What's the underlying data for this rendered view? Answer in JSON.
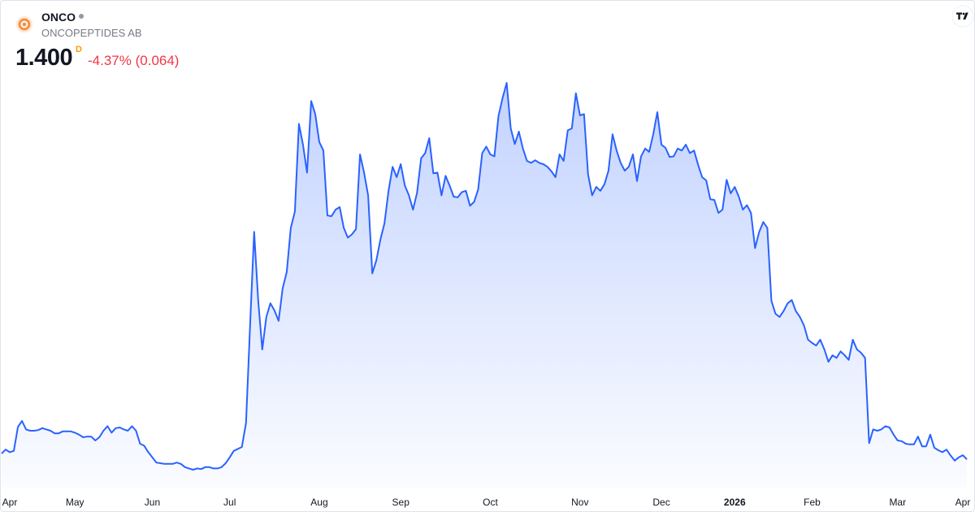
{
  "header": {
    "symbol": "ONCO",
    "name": "ONCOPEPTIDES AB",
    "price": "1.400",
    "price_flag": "D",
    "change_percent": "-4.37%",
    "change": "(0.064)"
  },
  "chart_data": {
    "type": "area",
    "color": "#2962ff",
    "categories": [
      null,
      null,
      "Apr",
      null,
      null,
      null,
      null,
      null,
      null,
      null,
      null,
      null,
      null,
      null,
      null,
      null,
      null,
      null,
      "May",
      null,
      null,
      null,
      null,
      null,
      null,
      null,
      null,
      null,
      null,
      null,
      null,
      null,
      null,
      null,
      null,
      null,
      null,
      "Jun",
      null,
      null,
      null,
      null,
      null,
      null,
      null,
      null,
      null,
      null,
      null,
      null,
      null,
      null,
      null,
      null,
      null,
      null,
      "Jul",
      null,
      null,
      null,
      null,
      null,
      null,
      null,
      null,
      null,
      null,
      null,
      null,
      null,
      null,
      null,
      null,
      null,
      null,
      null,
      null,
      null,
      "Aug",
      null,
      null,
      null,
      null,
      null,
      null,
      null,
      null,
      null,
      null,
      null,
      null,
      null,
      null,
      null,
      null,
      null,
      null,
      null,
      "Sep",
      null,
      null,
      null,
      null,
      null,
      null,
      null,
      null,
      null,
      null,
      null,
      null,
      null,
      null,
      null,
      null,
      null,
      null,
      null,
      null,
      null,
      "Oct",
      null,
      null,
      null,
      null,
      null,
      null,
      null,
      null,
      null,
      null,
      null,
      null,
      null,
      null,
      null,
      null,
      null,
      null,
      null,
      null,
      null,
      "Nov",
      null,
      null,
      null,
      null,
      null,
      null,
      null,
      null,
      null,
      null,
      null,
      null,
      null,
      null,
      null,
      null,
      null,
      null,
      null,
      "Dec",
      null,
      null,
      null,
      null,
      null,
      null,
      null,
      null,
      null,
      null,
      null,
      null,
      null,
      null,
      null,
      null,
      null,
      "2026",
      null,
      null,
      null,
      null,
      null,
      null,
      null,
      null,
      null,
      null,
      null,
      null,
      null,
      null,
      null,
      null,
      null,
      null,
      "Feb",
      null,
      null,
      null,
      null,
      null,
      null,
      null,
      null,
      null,
      null,
      null,
      null,
      null,
      null,
      null,
      null,
      null,
      null,
      null,
      null,
      "Mar",
      null,
      null,
      null,
      null,
      null,
      null,
      null,
      null,
      null,
      null,
      null,
      null,
      null,
      null,
      null,
      "Apr",
      null
    ],
    "values": [
      1.49,
      1.55,
      1.51,
      1.53,
      1.9,
      1.99,
      1.86,
      1.84,
      1.84,
      1.85,
      1.88,
      1.86,
      1.84,
      1.8,
      1.8,
      1.83,
      1.83,
      1.83,
      1.81,
      1.78,
      1.74,
      1.75,
      1.75,
      1.69,
      1.74,
      1.84,
      1.91,
      1.81,
      1.88,
      1.89,
      1.86,
      1.84,
      1.91,
      1.84,
      1.64,
      1.61,
      1.51,
      1.43,
      1.35,
      1.34,
      1.33,
      1.33,
      1.33,
      1.35,
      1.33,
      1.28,
      1.26,
      1.24,
      1.26,
      1.25,
      1.28,
      1.28,
      1.26,
      1.26,
      1.28,
      1.34,
      1.43,
      1.53,
      1.56,
      1.59,
      1.96,
      3.46,
      4.9,
      3.84,
      3.09,
      3.59,
      3.8,
      3.69,
      3.53,
      4.03,
      4.28,
      4.96,
      5.21,
      6.56,
      6.24,
      5.81,
      6.91,
      6.71,
      6.28,
      6.15,
      5.15,
      5.14,
      5.24,
      5.28,
      4.96,
      4.81,
      4.86,
      4.94,
      6.09,
      5.81,
      5.46,
      4.26,
      4.46,
      4.78,
      5.03,
      5.53,
      5.9,
      5.74,
      5.94,
      5.61,
      5.46,
      5.24,
      5.5,
      6.03,
      6.11,
      6.34,
      5.8,
      5.81,
      5.46,
      5.76,
      5.61,
      5.44,
      5.43,
      5.51,
      5.53,
      5.3,
      5.36,
      5.55,
      6.11,
      6.21,
      6.09,
      6.06,
      6.68,
      6.96,
      7.19,
      6.49,
      6.25,
      6.44,
      6.18,
      5.99,
      5.96,
      6.0,
      5.96,
      5.94,
      5.9,
      5.83,
      5.74,
      6.09,
      5.99,
      6.46,
      6.49,
      7.03,
      6.69,
      6.71,
      5.78,
      5.46,
      5.59,
      5.53,
      5.63,
      5.84,
      6.4,
      6.15,
      5.96,
      5.84,
      5.9,
      6.09,
      5.68,
      6.06,
      6.18,
      6.13,
      6.4,
      6.74,
      6.24,
      6.19,
      6.05,
      6.06,
      6.18,
      6.15,
      6.24,
      6.11,
      6.15,
      5.93,
      5.74,
      5.69,
      5.4,
      5.39,
      5.19,
      5.24,
      5.7,
      5.49,
      5.59,
      5.44,
      5.24,
      5.31,
      5.19,
      4.65,
      4.9,
      5.05,
      4.96,
      3.84,
      3.64,
      3.59,
      3.68,
      3.8,
      3.85,
      3.68,
      3.59,
      3.46,
      3.24,
      3.19,
      3.15,
      3.24,
      3.09,
      2.9,
      3.0,
      2.96,
      3.06,
      3.0,
      2.93,
      3.24,
      3.09,
      3.04,
      2.96,
      1.65,
      1.86,
      1.84,
      1.86,
      1.91,
      1.89,
      1.78,
      1.69,
      1.68,
      1.64,
      1.63,
      1.63,
      1.75,
      1.6,
      1.6,
      1.78,
      1.58,
      1.54,
      1.51,
      1.55,
      1.46,
      1.38,
      1.43,
      1.464,
      1.4
    ]
  }
}
